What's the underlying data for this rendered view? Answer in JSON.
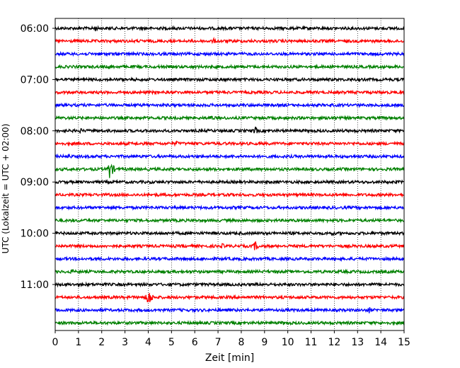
{
  "chart_data": {
    "type": "line",
    "title": "",
    "xlabel": "Zeit  [min]",
    "ylabel": "UTC (Lokalzeit = UTC + 02:00)",
    "xlim": [
      0,
      15
    ],
    "x_ticks": [
      "0",
      "1",
      "2",
      "3",
      "4",
      "5",
      "6",
      "7",
      "8",
      "9",
      "10",
      "11",
      "12",
      "13",
      "14",
      "15"
    ],
    "y_tick_labels": [
      "06:00",
      "07:00",
      "08:00",
      "09:00",
      "10:00",
      "11:00"
    ],
    "rows_per_hour": 4,
    "minutes_per_row": 15,
    "row_colors": [
      "#000000",
      "#ff0000",
      "#0000ff",
      "#008000"
    ],
    "grid": "vertical dotted",
    "series": [
      {
        "start": "06:00",
        "color": "#000000",
        "events": [
          {
            "t": 1.7,
            "amp": 0.35
          }
        ]
      },
      {
        "start": "06:15",
        "color": "#ff0000",
        "events": [
          {
            "t": 6.8,
            "amp": 0.25
          }
        ]
      },
      {
        "start": "06:30",
        "color": "#0000ff",
        "events": []
      },
      {
        "start": "06:45",
        "color": "#008000",
        "events": [
          {
            "t": 2.3,
            "amp": 0.25
          }
        ]
      },
      {
        "start": "07:00",
        "color": "#000000",
        "events": []
      },
      {
        "start": "07:15",
        "color": "#ff0000",
        "events": []
      },
      {
        "start": "07:30",
        "color": "#0000ff",
        "events": []
      },
      {
        "start": "07:45",
        "color": "#008000",
        "events": [
          {
            "t": 6.7,
            "amp": 0.3
          },
          {
            "t": 11.9,
            "amp": 0.3
          }
        ]
      },
      {
        "start": "08:00",
        "color": "#000000",
        "events": [
          {
            "t": 8.6,
            "amp": 0.4
          },
          {
            "t": 1.1,
            "amp": 0.25
          }
        ]
      },
      {
        "start": "08:15",
        "color": "#ff0000",
        "events": [
          {
            "t": 5.2,
            "amp": 0.25
          }
        ]
      },
      {
        "start": "08:30",
        "color": "#0000ff",
        "events": [
          {
            "t": 0.6,
            "amp": 0.25
          }
        ]
      },
      {
        "start": "08:45",
        "color": "#008000",
        "events": [
          {
            "t": 2.35,
            "amp": 0.9
          }
        ]
      },
      {
        "start": "09:00",
        "color": "#000000",
        "events": []
      },
      {
        "start": "09:15",
        "color": "#ff0000",
        "events": [
          {
            "t": 7.5,
            "amp": 0.25
          }
        ]
      },
      {
        "start": "09:30",
        "color": "#0000ff",
        "events": []
      },
      {
        "start": "09:45",
        "color": "#008000",
        "events": []
      },
      {
        "start": "10:00",
        "color": "#000000",
        "events": [
          {
            "t": 11.9,
            "amp": 0.25
          }
        ]
      },
      {
        "start": "10:15",
        "color": "#ff0000",
        "events": [
          {
            "t": 8.6,
            "amp": 0.45
          },
          {
            "t": 7.2,
            "amp": 0.25
          }
        ]
      },
      {
        "start": "10:30",
        "color": "#0000ff",
        "events": []
      },
      {
        "start": "10:45",
        "color": "#008000",
        "events": [
          {
            "t": 0.7,
            "amp": 0.25
          }
        ]
      },
      {
        "start": "11:00",
        "color": "#000000",
        "events": []
      },
      {
        "start": "11:15",
        "color": "#ff0000",
        "events": [
          {
            "t": 4.0,
            "amp": 0.85
          }
        ]
      },
      {
        "start": "11:30",
        "color": "#0000ff",
        "events": [
          {
            "t": 13.5,
            "amp": 0.3
          }
        ]
      },
      {
        "start": "11:45",
        "color": "#008000",
        "events": [
          {
            "t": 9.8,
            "amp": 0.2
          }
        ]
      }
    ]
  }
}
